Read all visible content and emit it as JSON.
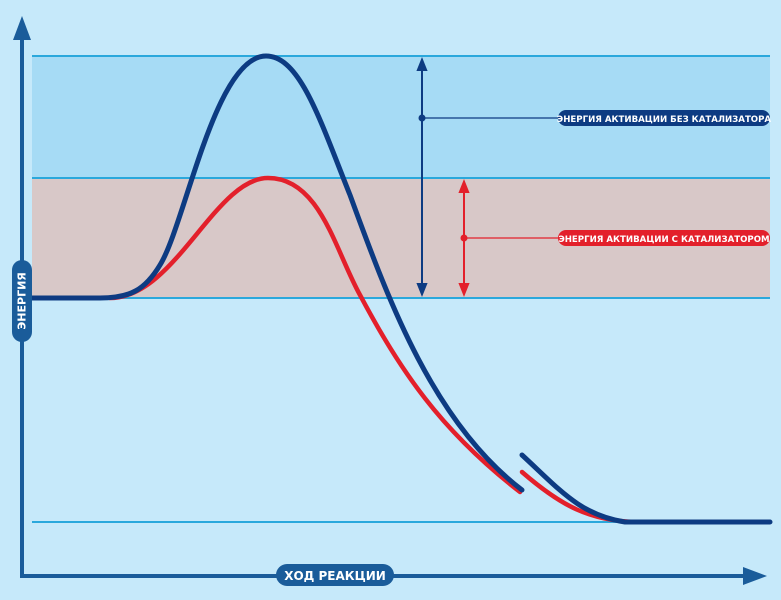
{
  "axes": {
    "y_label": "ЭНЕРГИЯ",
    "x_label": "ХОД РЕАКЦИИ"
  },
  "annotations": {
    "without_catalyst": "ЭНЕРГИЯ АКТИВАЦИИ БЕЗ КАТАЛИЗАТОРА",
    "with_catalyst": "ЭНЕРГИЯ АКТИВАЦИИ С КАТАЛИЗАТОРОМ"
  },
  "colors": {
    "background": "#c6e9fa",
    "band_without_catalyst": "#a6dbf5",
    "band_with_catalyst": "#d8c8c8",
    "guide_line": "#2aa8dc",
    "axis": "#1a5c9a",
    "curve_without_catalyst": "#0d3b82",
    "curve_with_catalyst": "#e3202b",
    "badge_without_catalyst": "#0d3b82",
    "badge_with_catalyst": "#e3202b",
    "axis_badge": "#1a5c9a"
  }
}
